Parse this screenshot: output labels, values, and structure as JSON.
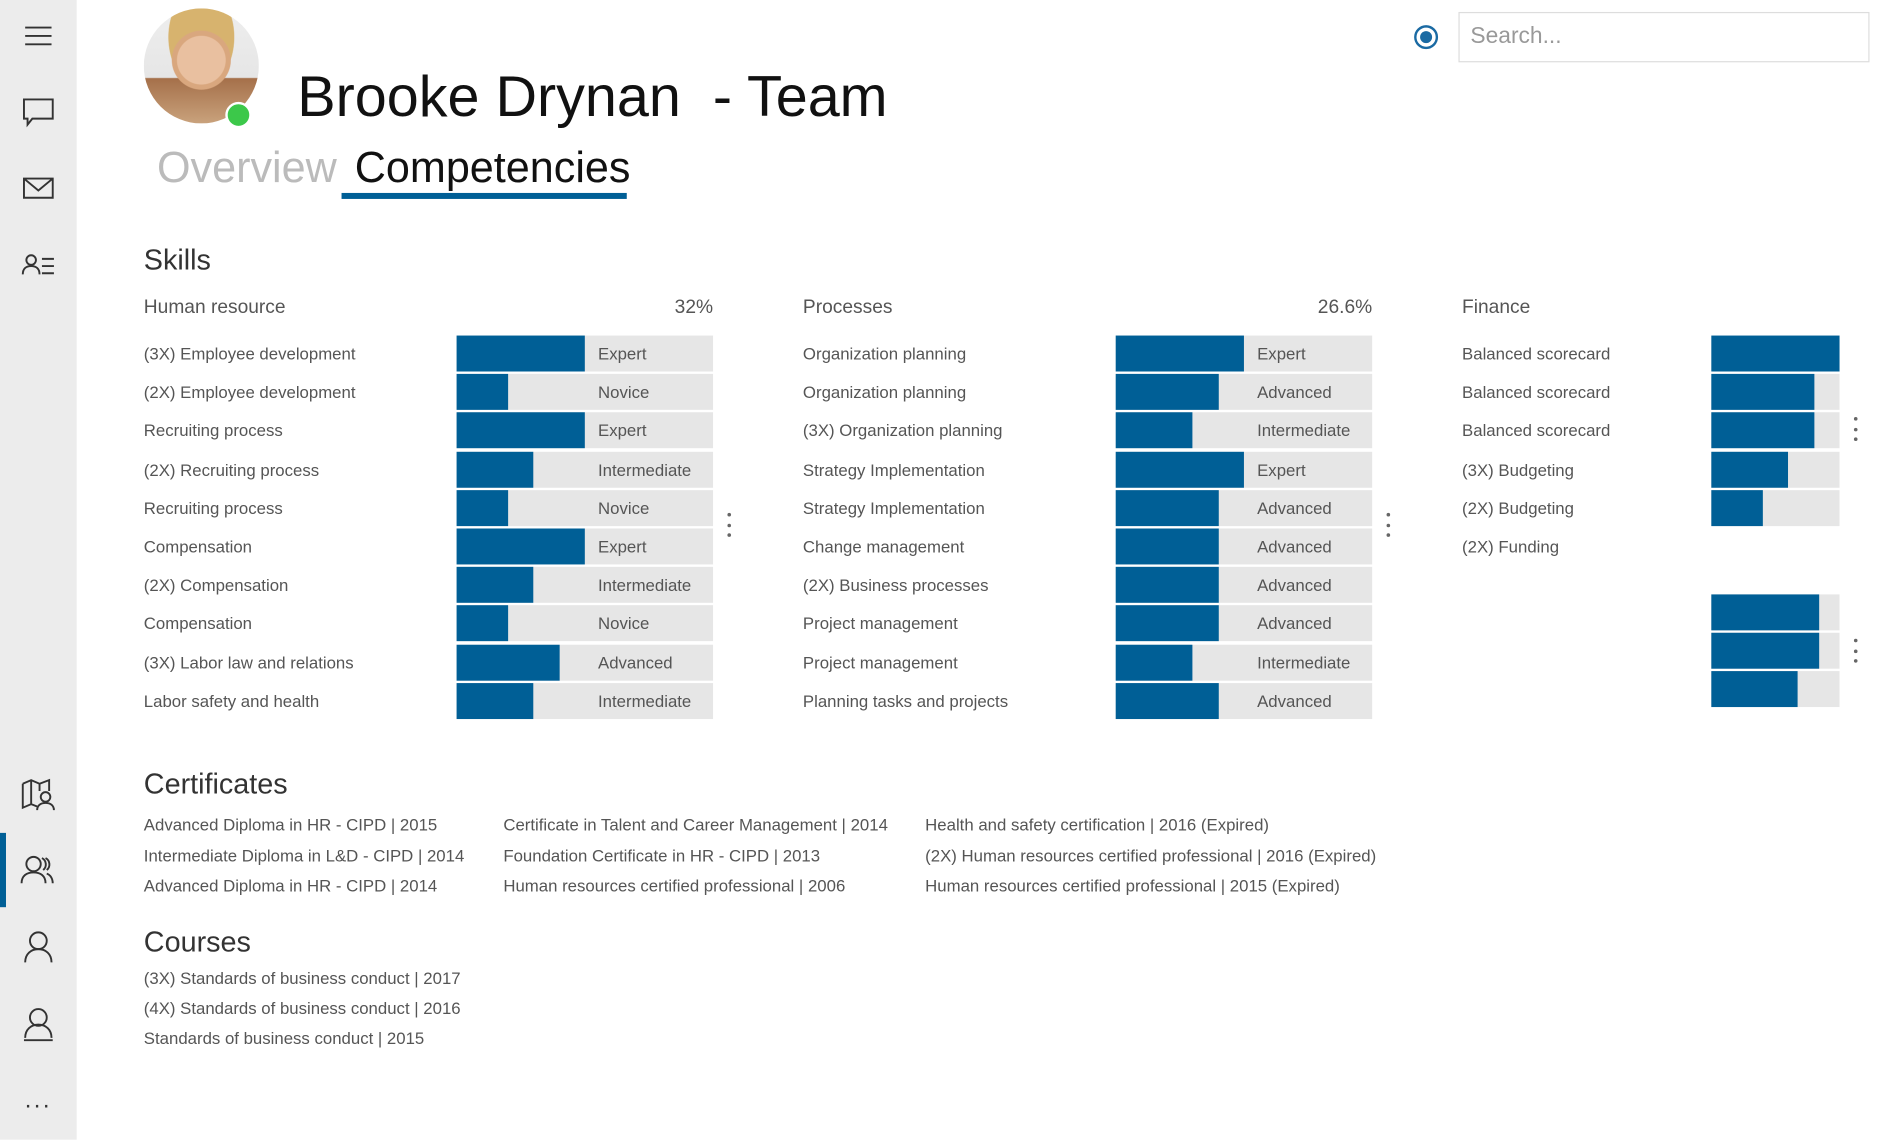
{
  "sidebar": {
    "top_icons": [
      "hamburger-menu-icon",
      "chat-icon",
      "mail-icon",
      "contact-list-icon"
    ],
    "bottom_icons": [
      "map-people-icon",
      "team-icon",
      "person-icon",
      "person-account-icon",
      "more-icon"
    ],
    "active": "team-icon",
    "more_label": "..."
  },
  "header": {
    "title": "Brooke Drynan  - Team",
    "presence_color": "#3cc84a",
    "tabs": [
      {
        "label": "Overview",
        "active": false
      },
      {
        "label": "Competencies",
        "active": true
      }
    ],
    "accent": "#005f96"
  },
  "search": {
    "placeholder": "Search..."
  },
  "skills": {
    "title": "Skills",
    "groups": [
      {
        "name": "Human resource",
        "percent": "32%",
        "rows": [
          {
            "label": "(3X) Employee development",
            "level": "Expert",
            "value": 1.0
          },
          {
            "label": "(2X) Employee development",
            "level": "Novice",
            "value": 0.4
          },
          {
            "label": "Recruiting process",
            "level": "Expert",
            "value": 1.0
          },
          {
            "label": "(2X) Recruiting process",
            "level": "Intermediate",
            "value": 0.6
          },
          {
            "label": "Recruiting process",
            "level": "Novice",
            "value": 0.4
          },
          {
            "label": "Compensation",
            "level": "Expert",
            "value": 1.0
          },
          {
            "label": "(2X) Compensation",
            "level": "Intermediate",
            "value": 0.6
          },
          {
            "label": "Compensation",
            "level": "Novice",
            "value": 0.4
          },
          {
            "label": "(3X) Labor law and relations",
            "level": "Advanced",
            "value": 0.8
          },
          {
            "label": "Labor safety and health",
            "level": "Intermediate",
            "value": 0.6
          }
        ]
      },
      {
        "name": "Processes",
        "percent": "26.6%",
        "rows": [
          {
            "label": "Organization planning",
            "level": "Expert",
            "value": 1.0
          },
          {
            "label": "Organization planning",
            "level": "Advanced",
            "value": 0.8
          },
          {
            "label": "(3X) Organization planning",
            "level": "Intermediate",
            "value": 0.6
          },
          {
            "label": "Strategy Implementation",
            "level": "Expert",
            "value": 1.0
          },
          {
            "label": "Strategy Implementation",
            "level": "Advanced",
            "value": 0.8
          },
          {
            "label": "Change management",
            "level": "Advanced",
            "value": 0.8
          },
          {
            "label": "(2X) Business processes",
            "level": "Advanced",
            "value": 0.8
          },
          {
            "label": "Project management",
            "level": "Advanced",
            "value": 0.8
          },
          {
            "label": "Project management",
            "level": "Intermediate",
            "value": 0.6
          },
          {
            "label": "Planning tasks and projects",
            "level": "Advanced",
            "value": 0.8
          }
        ]
      },
      {
        "name": "Finance",
        "rows": [
          {
            "label": "Balanced scorecard",
            "value": 1.0
          },
          {
            "label": "Balanced scorecard",
            "value": 0.8
          },
          {
            "label": "Balanced scorecard",
            "value": 0.8
          },
          {
            "label": "(3X) Budgeting",
            "value": 0.6
          },
          {
            "label": "(2X) Budgeting",
            "value": 0.4
          },
          {
            "label": "(2X) Funding"
          }
        ],
        "extra_bars": [
          0.84,
          0.84,
          0.67
        ]
      }
    ]
  },
  "certificates": {
    "title": "Certificates",
    "columns": [
      [
        "Advanced Diploma in HR - CIPD | 2015",
        "Intermediate Diploma in L&D - CIPD | 2014",
        "Advanced Diploma in HR - CIPD | 2014"
      ],
      [
        "Certificate in Talent and Career Management | 2014",
        "Foundation Certificate in HR - CIPD | 2013",
        "Human resources certified professional | 2006"
      ],
      [
        "Health and safety certification | 2016 (Expired)",
        "(2X) Human resources certified professional | 2016 (Expired)",
        "Human resources certified professional | 2015 (Expired)"
      ]
    ]
  },
  "courses": {
    "title": "Courses",
    "items": [
      "(3X) Standards of business conduct | 2017",
      "(4X) Standards of business conduct | 2016",
      "Standards of business conduct | 2015"
    ]
  }
}
